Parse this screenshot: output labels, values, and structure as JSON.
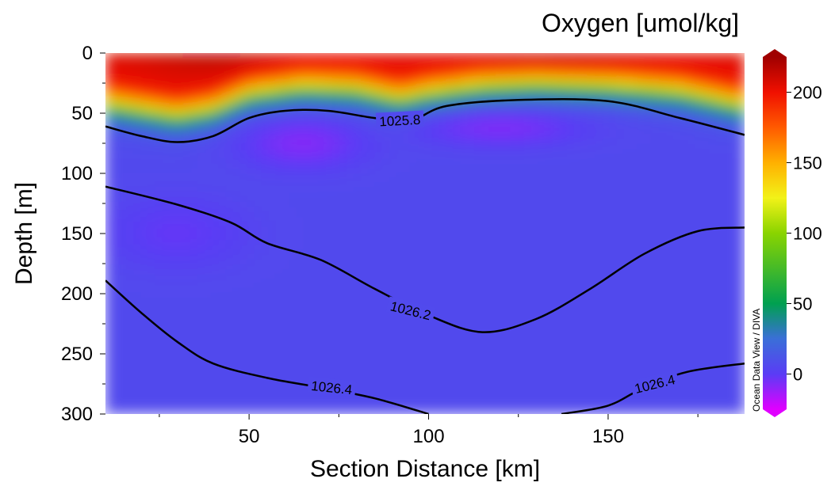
{
  "chart_data": {
    "type": "heatmap",
    "title": "Oxygen [umol/kg]",
    "xlabel": "Section Distance [km]",
    "ylabel": "Depth [m]",
    "xlim": [
      10,
      188
    ],
    "ylim": [
      0,
      300
    ],
    "y_inverted": true,
    "x_ticks": [
      50,
      100,
      150
    ],
    "y_ticks": [
      0,
      50,
      100,
      150,
      200,
      250,
      300
    ],
    "colorbar": {
      "range": [
        -25,
        225
      ],
      "ticks": [
        0,
        50,
        100,
        150,
        200
      ],
      "colors": [
        {
          "value": -25,
          "color": "#e000ff"
        },
        {
          "value": 0,
          "color": "#5a3cf5"
        },
        {
          "value": 25,
          "color": "#3a6fd8"
        },
        {
          "value": 50,
          "color": "#00a050"
        },
        {
          "value": 100,
          "color": "#8ad400"
        },
        {
          "value": 125,
          "color": "#f2f218"
        },
        {
          "value": 150,
          "color": "#ffb000"
        },
        {
          "value": 175,
          "color": "#ff5a00"
        },
        {
          "value": 200,
          "color": "#f01000"
        },
        {
          "value": 225,
          "color": "#a00000"
        }
      ],
      "credit": "Ocean Data View / DIVA"
    },
    "field": {
      "surface_value": 205,
      "deep_value": 7,
      "low_min_value": -8,
      "oxycline_depth": [
        {
          "x": 10,
          "y": 42
        },
        {
          "x": 20,
          "y": 47
        },
        {
          "x": 30,
          "y": 52
        },
        {
          "x": 40,
          "y": 47
        },
        {
          "x": 50,
          "y": 34
        },
        {
          "x": 65,
          "y": 28
        },
        {
          "x": 80,
          "y": 30
        },
        {
          "x": 92,
          "y": 38
        },
        {
          "x": 100,
          "y": 33
        },
        {
          "x": 115,
          "y": 27
        },
        {
          "x": 130,
          "y": 25
        },
        {
          "x": 150,
          "y": 27
        },
        {
          "x": 170,
          "y": 32
        },
        {
          "x": 188,
          "y": 44
        }
      ]
    },
    "contours": [
      {
        "label": "1025.8",
        "points": [
          {
            "x": 10,
            "y": 61
          },
          {
            "x": 20,
            "y": 69
          },
          {
            "x": 30,
            "y": 74
          },
          {
            "x": 40,
            "y": 69
          },
          {
            "x": 50,
            "y": 54
          },
          {
            "x": 60,
            "y": 48
          },
          {
            "x": 72,
            "y": 48
          },
          {
            "x": 85,
            "y": 54
          },
          {
            "x": 95,
            "y": 56
          },
          {
            "x": 105,
            "y": 44
          },
          {
            "x": 125,
            "y": 39
          },
          {
            "x": 150,
            "y": 40
          },
          {
            "x": 170,
            "y": 54
          },
          {
            "x": 188,
            "y": 68
          }
        ]
      },
      {
        "label": "1026.2",
        "points": [
          {
            "x": 10,
            "y": 111
          },
          {
            "x": 30,
            "y": 126
          },
          {
            "x": 45,
            "y": 141
          },
          {
            "x": 55,
            "y": 158
          },
          {
            "x": 70,
            "y": 172
          },
          {
            "x": 85,
            "y": 196
          },
          {
            "x": 100,
            "y": 218
          },
          {
            "x": 115,
            "y": 232
          },
          {
            "x": 130,
            "y": 221
          },
          {
            "x": 145,
            "y": 196
          },
          {
            "x": 160,
            "y": 167
          },
          {
            "x": 175,
            "y": 148
          },
          {
            "x": 188,
            "y": 145
          }
        ]
      },
      {
        "label": "1026.4",
        "points": [
          {
            "x": 10,
            "y": 189
          },
          {
            "x": 20,
            "y": 216
          },
          {
            "x": 30,
            "y": 240
          },
          {
            "x": 40,
            "y": 258
          },
          {
            "x": 55,
            "y": 270
          },
          {
            "x": 70,
            "y": 278
          },
          {
            "x": 85,
            "y": 287
          },
          {
            "x": 100,
            "y": 300
          }
        ]
      },
      {
        "label": "1026.4",
        "points": [
          {
            "x": 137,
            "y": 300
          },
          {
            "x": 150,
            "y": 293
          },
          {
            "x": 160,
            "y": 278
          },
          {
            "x": 172,
            "y": 265
          },
          {
            "x": 188,
            "y": 258
          }
        ]
      }
    ],
    "contour_labels": [
      {
        "text": "1025.8",
        "x": 92,
        "y": 56,
        "angle_deg": -3
      },
      {
        "text": "1026.2",
        "x": 95,
        "y": 214,
        "angle_deg": 14
      },
      {
        "text": "1026.4",
        "x": 73,
        "y": 278,
        "angle_deg": 6
      },
      {
        "text": "1026.4",
        "x": 163,
        "y": 275,
        "angle_deg": -14
      }
    ],
    "grid": false
  }
}
